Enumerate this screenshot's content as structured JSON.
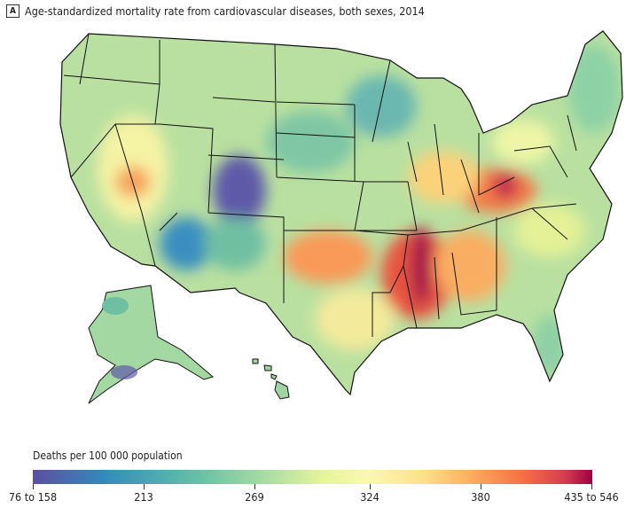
{
  "panel": {
    "letter": "A",
    "title": "Age-standardized mortality rate from cardiovascular diseases, both sexes, 2014"
  },
  "legend": {
    "title": "Deaths per 100 000 population",
    "ticks": [
      "76 to 158",
      "213",
      "269",
      "324",
      "380",
      "435 to 546"
    ],
    "colors": [
      "#5e4fa2",
      "#3288bd",
      "#66c2a5",
      "#abdda4",
      "#e6f598",
      "#fee08b",
      "#fdae61",
      "#f46d43",
      "#d53e4f",
      "#9e0142"
    ]
  }
}
